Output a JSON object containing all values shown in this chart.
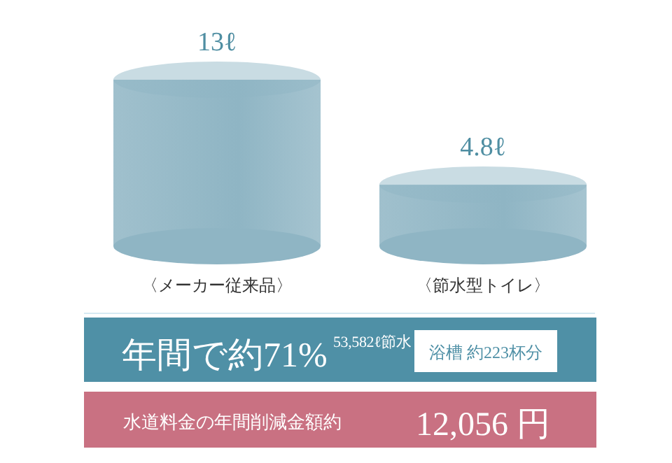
{
  "chart_data": {
    "type": "bar",
    "categories": [
      "〈メーカー従来品〉",
      "〈節水型トイレ〉"
    ],
    "values": [
      13,
      4.8
    ],
    "value_labels": [
      "13ℓ",
      "4.8ℓ"
    ],
    "color": "#8fb5c4",
    "annotations": [
      "年間で約71%",
      "53,582ℓ節水",
      "浴槽 約223杯分",
      "水道料金の年間削減金額約",
      "12,056 円"
    ]
  }
}
